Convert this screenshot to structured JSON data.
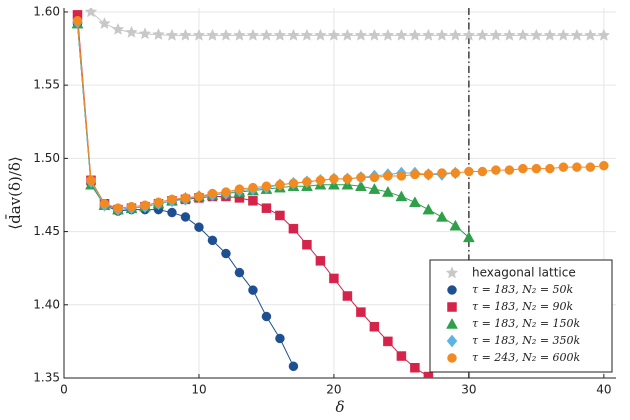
{
  "chart_data": {
    "type": "line",
    "xlabel": "δ",
    "ylabel": "⟨d̄av(δ)/δ⟩",
    "xlim": [
      0,
      40.9
    ],
    "ylim": [
      1.35,
      1.6027
    ],
    "xticks": [
      0,
      10,
      20,
      30,
      40
    ],
    "yticks": [
      1.35,
      {
        "value": 1.4,
        "label": "1.40"
      },
      1.45,
      {
        "value": 1.5,
        "label": "1.50"
      },
      1.55,
      {
        "value": 1.6,
        "label": "1.60"
      }
    ],
    "grid": true,
    "legend": "bottom-right",
    "vline": 30,
    "series": [
      {
        "name": "hexagonal lattice",
        "color": "#c8c8c8",
        "marker": "star",
        "x": [
          2,
          3,
          4,
          5,
          6,
          7,
          8,
          9,
          10,
          11,
          12,
          13,
          14,
          15,
          16,
          17,
          18,
          19,
          20,
          21,
          22,
          23,
          24,
          25,
          26,
          27,
          28,
          29,
          30,
          31,
          32,
          33,
          34,
          35,
          36,
          37,
          38,
          39,
          40
        ],
        "values": [
          1.6,
          1.592,
          1.588,
          1.586,
          1.585,
          1.5845,
          1.584,
          1.584,
          1.584,
          1.584,
          1.584,
          1.584,
          1.584,
          1.584,
          1.584,
          1.584,
          1.584,
          1.584,
          1.584,
          1.584,
          1.584,
          1.584,
          1.584,
          1.584,
          1.584,
          1.584,
          1.584,
          1.584,
          1.584,
          1.584,
          1.584,
          1.584,
          1.584,
          1.584,
          1.584,
          1.584,
          1.584,
          1.584,
          1.584
        ]
      },
      {
        "name": "τ = 183, N₂ = 50k",
        "color": "#1d4f91",
        "marker": "circle",
        "x": [
          1,
          2,
          3,
          4,
          5,
          6,
          7,
          8,
          9,
          10,
          11,
          12,
          13,
          14,
          15,
          16,
          17
        ],
        "values": [
          1.592,
          1.483,
          1.468,
          1.464,
          1.465,
          1.465,
          1.465,
          1.463,
          1.46,
          1.453,
          1.444,
          1.435,
          1.422,
          1.41,
          1.392,
          1.377,
          1.358
        ]
      },
      {
        "name": "τ = 183, N₂ = 90k",
        "color": "#d6234a",
        "marker": "square",
        "x": [
          1,
          2,
          3,
          4,
          5,
          6,
          7,
          8,
          9,
          10,
          11,
          12,
          13,
          14,
          15,
          16,
          17,
          18,
          19,
          20,
          21,
          22,
          23,
          24,
          25,
          26,
          27
        ],
        "values": [
          1.598,
          1.485,
          1.469,
          1.465,
          1.466,
          1.467,
          1.469,
          1.471,
          1.472,
          1.473,
          1.474,
          1.474,
          1.473,
          1.471,
          1.466,
          1.461,
          1.452,
          1.441,
          1.43,
          1.418,
          1.406,
          1.395,
          1.385,
          1.375,
          1.365,
          1.357,
          1.351
        ]
      },
      {
        "name": "τ = 183, N₂ = 150k",
        "color": "#2ea04a",
        "marker": "triangle",
        "x": [
          1,
          2,
          3,
          4,
          5,
          6,
          7,
          8,
          9,
          10,
          11,
          12,
          13,
          14,
          15,
          16,
          17,
          18,
          19,
          20,
          21,
          22,
          23,
          24,
          25,
          26,
          27,
          28,
          29,
          30
        ],
        "values": [
          1.592,
          1.482,
          1.468,
          1.465,
          1.466,
          1.467,
          1.469,
          1.471,
          1.473,
          1.474,
          1.475,
          1.476,
          1.477,
          1.478,
          1.479,
          1.48,
          1.481,
          1.481,
          1.482,
          1.482,
          1.482,
          1.481,
          1.479,
          1.477,
          1.474,
          1.47,
          1.465,
          1.46,
          1.454,
          1.446
        ]
      },
      {
        "name": "τ = 183, N₂ = 350k",
        "color": "#5cb4e6",
        "marker": "diamond",
        "x": [
          1,
          2,
          3,
          4,
          5,
          6,
          7,
          8,
          9,
          10,
          11,
          12,
          13,
          14,
          15,
          16,
          17,
          18,
          19,
          20,
          21,
          22,
          23,
          24,
          25,
          26,
          27,
          28,
          29
        ],
        "values": [
          1.593,
          1.484,
          1.468,
          1.465,
          1.466,
          1.467,
          1.469,
          1.471,
          1.472,
          1.474,
          1.475,
          1.476,
          1.478,
          1.479,
          1.48,
          1.482,
          1.483,
          1.484,
          1.485,
          1.486,
          1.486,
          1.487,
          1.488,
          1.489,
          1.49,
          1.49,
          1.489,
          1.489,
          1.49
        ]
      },
      {
        "name": "τ = 243, N₂ = 600k",
        "color": "#f28a22",
        "marker": "circle",
        "x": [
          1,
          2,
          3,
          4,
          5,
          6,
          7,
          8,
          9,
          10,
          11,
          12,
          13,
          14,
          15,
          16,
          17,
          18,
          19,
          20,
          21,
          22,
          23,
          24,
          25,
          26,
          27,
          28,
          29,
          30,
          31,
          32,
          33,
          34,
          35,
          36,
          37,
          38,
          39,
          40
        ],
        "values": [
          1.594,
          1.485,
          1.469,
          1.466,
          1.467,
          1.468,
          1.47,
          1.472,
          1.473,
          1.474,
          1.476,
          1.477,
          1.479,
          1.48,
          1.481,
          1.482,
          1.483,
          1.484,
          1.485,
          1.486,
          1.486,
          1.487,
          1.487,
          1.488,
          1.488,
          1.489,
          1.489,
          1.49,
          1.49,
          1.491,
          1.491,
          1.492,
          1.492,
          1.493,
          1.493,
          1.493,
          1.494,
          1.494,
          1.494,
          1.495
        ]
      }
    ]
  }
}
